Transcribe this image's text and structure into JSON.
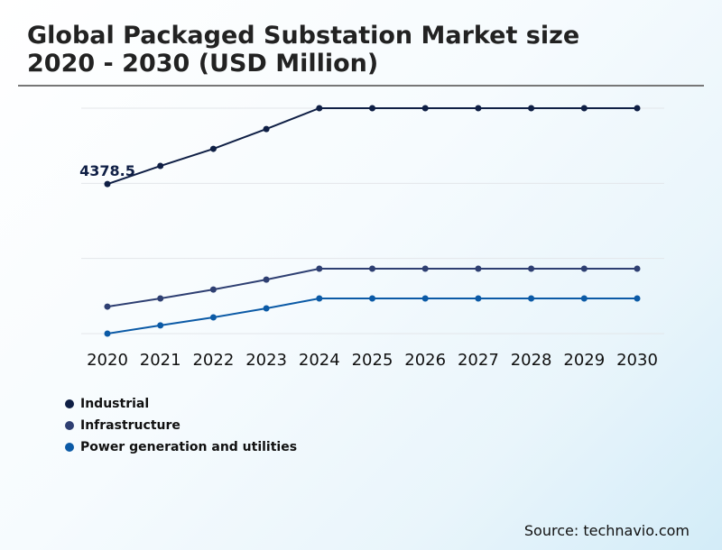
{
  "title_line1": "Global Packaged Substation Market size",
  "title_line2": "2020 - 2030 (USD Million)",
  "source": "Source: technavio.com",
  "chart_data": {
    "type": "line",
    "x": [
      "2020",
      "2021",
      "2022",
      "2023",
      "2024",
      "2025",
      "2026",
      "2027",
      "2028",
      "2029",
      "2030"
    ],
    "ylim": [
      0,
      6600
    ],
    "grid": true,
    "legend_position": "bottom-left",
    "data_labels": [
      {
        "series": "Industrial",
        "x": "2020",
        "text": "4378.5"
      }
    ],
    "series": [
      {
        "name": "Industrial",
        "color": "#0f1f45",
        "values": [
          4378.5,
          4910,
          5410,
          5990,
          6600,
          6600,
          6600,
          6600,
          6600,
          6600,
          6600
        ]
      },
      {
        "name": "Infrastructure",
        "color": "#2e3f72",
        "values": [
          790,
          1030,
          1290,
          1580,
          1900,
          1900,
          1900,
          1900,
          1900,
          1900,
          1900
        ]
      },
      {
        "name": "Power generation and utilities",
        "color": "#0b5aa6",
        "values": [
          0,
          240,
          475,
          740,
          1030,
          1030,
          1030,
          1030,
          1030,
          1030,
          1030
        ]
      }
    ]
  }
}
